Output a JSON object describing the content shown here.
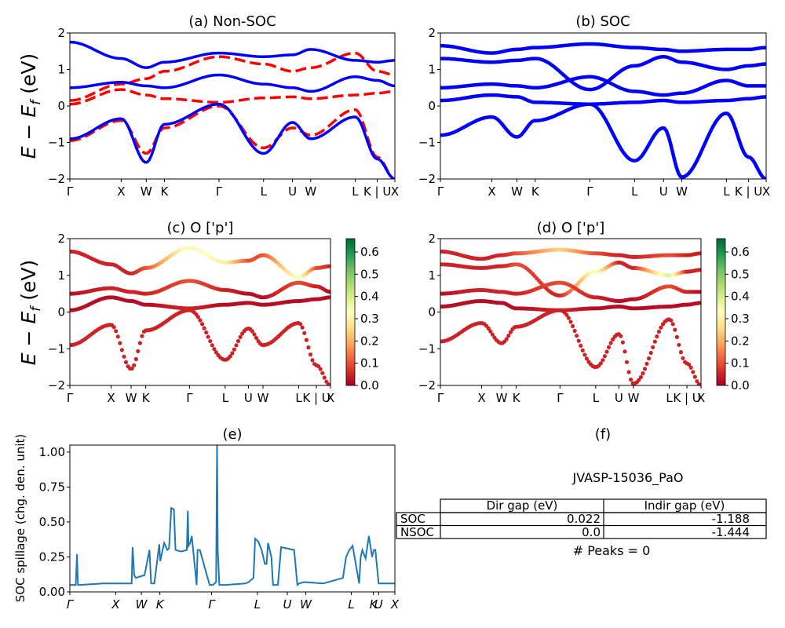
{
  "figure": {
    "ylabel_band": "E − E_f (eV)",
    "ylabel_spillage": "SOC spillage (chg. den. unit)"
  },
  "colors": {
    "nonsoc_red": "#ff0000",
    "soc_blue": "#0000ff",
    "spillage_line": "#1f77b4"
  },
  "colorbar": {
    "colormap": "RdYlGn",
    "ticks": [
      "0.0",
      "0.1",
      "0.2",
      "0.3",
      "0.4",
      "0.5",
      "0.6"
    ],
    "range": [
      0,
      0.66
    ]
  },
  "chart_data": [
    {
      "panel": "a",
      "type": "line",
      "title": "(a) Non-SOC",
      "ylim": [
        -2,
        2
      ],
      "yticks": [
        "−2",
        "−1",
        "0",
        "1",
        "2"
      ],
      "kpath": [
        "Γ",
        "X",
        "W",
        "K",
        "Γ",
        "L",
        "U",
        "W",
        "L",
        "K | U",
        "X"
      ],
      "kpos": [
        0,
        0.158,
        0.235,
        0.291,
        0.459,
        0.596,
        0.685,
        0.741,
        0.878,
        0.946,
        1.0
      ],
      "series": [
        {
          "style": "dashed red",
          "x": [
            0,
            0.158,
            0.235,
            0.291,
            0.459,
            0.596,
            0.685,
            0.741,
            0.878,
            0.946,
            1.0
          ],
          "y": [
            0.15,
            0.6,
            0.75,
            0.95,
            1.35,
            1.15,
            0.95,
            1.05,
            1.45,
            0.95,
            0.85
          ]
        },
        {
          "style": "dashed red",
          "x": [
            0,
            0.158,
            0.235,
            0.291,
            0.459,
            0.596,
            0.685,
            0.741,
            0.878,
            0.946,
            1.0
          ],
          "y": [
            0.05,
            0.45,
            0.3,
            0.2,
            0.1,
            0.22,
            0.25,
            0.2,
            0.3,
            0.35,
            0.4
          ]
        },
        {
          "style": "dashed red",
          "x": [
            0,
            0.158,
            0.235,
            0.291,
            0.459,
            0.596,
            0.685,
            0.741,
            0.878,
            0.946,
            1.0
          ],
          "y": [
            -0.95,
            -0.4,
            -1.3,
            -0.6,
            0.0,
            -1.15,
            -0.6,
            -0.8,
            -0.1,
            -1.4,
            -2.0
          ]
        },
        {
          "style": "solid blue",
          "x": [
            0,
            0.158,
            0.235,
            0.291,
            0.459,
            0.596,
            0.685,
            0.741,
            0.878,
            0.946,
            1.0
          ],
          "y": [
            1.75,
            1.3,
            1.05,
            1.2,
            1.45,
            1.35,
            1.4,
            1.55,
            1.25,
            1.2,
            1.25
          ]
        },
        {
          "style": "solid blue",
          "x": [
            0,
            0.158,
            0.235,
            0.291,
            0.459,
            0.596,
            0.685,
            0.741,
            0.878,
            0.946,
            1.0
          ],
          "y": [
            0.5,
            0.65,
            0.55,
            0.5,
            0.85,
            0.6,
            0.5,
            0.4,
            0.8,
            0.7,
            0.55
          ]
        },
        {
          "style": "solid blue",
          "x": [
            0,
            0.158,
            0.235,
            0.291,
            0.459,
            0.596,
            0.685,
            0.741,
            0.878,
            0.946,
            1.0
          ],
          "y": [
            -0.9,
            -0.35,
            -1.55,
            -0.5,
            0.05,
            -1.3,
            -0.45,
            -0.9,
            -0.3,
            -1.45,
            -2.0
          ]
        }
      ]
    },
    {
      "panel": "b",
      "type": "line",
      "title": "(b) SOC",
      "ylim": [
        -2,
        2
      ],
      "yticks": [
        "−2",
        "−1",
        "0",
        "1",
        "2"
      ],
      "kpath": [
        "Γ",
        "X",
        "W",
        "K",
        "Γ",
        "L",
        "U",
        "W",
        "L",
        "K | U",
        "X"
      ],
      "kpos": [
        0,
        0.158,
        0.235,
        0.291,
        0.459,
        0.596,
        0.685,
        0.741,
        0.878,
        0.946,
        1.0
      ],
      "series": [
        {
          "style": "solid blue",
          "x": [
            0,
            0.158,
            0.235,
            0.291,
            0.459,
            0.596,
            0.685,
            0.741,
            0.878,
            0.946,
            1.0
          ],
          "y": [
            1.65,
            1.45,
            1.55,
            1.6,
            1.7,
            1.6,
            1.55,
            1.5,
            1.55,
            1.55,
            1.6
          ]
        },
        {
          "style": "solid blue",
          "x": [
            0,
            0.158,
            0.235,
            0.291,
            0.459,
            0.596,
            0.685,
            0.741,
            0.878,
            0.946,
            1.0
          ],
          "y": [
            1.3,
            1.2,
            1.25,
            1.3,
            0.45,
            1.1,
            1.35,
            1.2,
            1.0,
            1.1,
            1.15
          ]
        },
        {
          "style": "solid blue",
          "x": [
            0,
            0.158,
            0.235,
            0.291,
            0.459,
            0.596,
            0.685,
            0.741,
            0.878,
            0.946,
            1.0
          ],
          "y": [
            0.5,
            0.6,
            0.55,
            0.5,
            0.8,
            0.4,
            0.3,
            0.35,
            0.7,
            0.55,
            0.55
          ]
        },
        {
          "style": "solid blue",
          "x": [
            0,
            0.158,
            0.235,
            0.291,
            0.459,
            0.596,
            0.685,
            0.741,
            0.878,
            0.946,
            1.0
          ],
          "y": [
            0.15,
            0.3,
            0.25,
            0.1,
            0.05,
            0.1,
            0.15,
            0.1,
            0.15,
            0.2,
            0.25
          ]
        },
        {
          "style": "solid blue",
          "x": [
            0,
            0.158,
            0.235,
            0.291,
            0.459,
            0.596,
            0.685,
            0.741,
            0.878,
            0.946,
            1.0
          ],
          "y": [
            -0.8,
            -0.3,
            -0.85,
            -0.4,
            0.05,
            -1.5,
            -0.6,
            -1.95,
            -0.2,
            -1.4,
            -2.0
          ]
        }
      ]
    },
    {
      "panel": "c",
      "type": "scatter",
      "title": "(c)  O ['p']",
      "ylim": [
        -2,
        2
      ],
      "yticks": [
        "−2",
        "−1",
        "0",
        "1",
        "2"
      ],
      "kpath": [
        "Γ",
        "X",
        "W",
        "K",
        "Γ",
        "L",
        "U",
        "W",
        "L",
        "K | U",
        "X"
      ],
      "kpos": [
        0,
        0.158,
        0.235,
        0.291,
        0.459,
        0.596,
        0.685,
        0.741,
        0.878,
        0.946,
        1.0
      ],
      "series": [
        {
          "x": [
            0,
            0.158,
            0.235,
            0.291,
            0.459,
            0.596,
            0.685,
            0.741,
            0.878,
            0.946,
            1.0
          ],
          "y": [
            1.65,
            1.3,
            1.05,
            1.2,
            1.75,
            1.35,
            1.4,
            1.55,
            0.95,
            1.2,
            1.25
          ],
          "weight": [
            0.05,
            0.05,
            0.05,
            0.1,
            0.35,
            0.3,
            0.1,
            0.1,
            0.35,
            0.1,
            0.05
          ]
        },
        {
          "x": [
            0,
            0.158,
            0.235,
            0.291,
            0.459,
            0.596,
            0.685,
            0.741,
            0.878,
            0.946,
            1.0
          ],
          "y": [
            0.5,
            0.65,
            0.55,
            0.5,
            0.85,
            0.6,
            0.5,
            0.4,
            0.8,
            0.7,
            0.55
          ],
          "weight": [
            0.02,
            0.05,
            0.05,
            0.05,
            0.1,
            0.05,
            0.02,
            0.02,
            0.1,
            0.05,
            0.02
          ]
        },
        {
          "x": [
            0,
            0.158,
            0.235,
            0.291,
            0.459,
            0.596,
            0.685,
            0.741,
            0.878,
            0.946,
            1.0
          ],
          "y": [
            0.05,
            0.4,
            0.3,
            0.2,
            0.1,
            0.2,
            0.25,
            0.2,
            0.3,
            0.35,
            0.4
          ],
          "weight": [
            0.02,
            0.02,
            0.02,
            0.02,
            0.05,
            0.02,
            0.02,
            0.02,
            0.02,
            0.02,
            0.02
          ]
        },
        {
          "x": [
            0,
            0.158,
            0.235,
            0.291,
            0.459,
            0.596,
            0.685,
            0.741,
            0.878,
            0.946,
            1.0
          ],
          "y": [
            -0.9,
            -0.35,
            -1.55,
            -0.5,
            0.05,
            -1.3,
            -0.45,
            -0.9,
            -0.3,
            -1.45,
            -2.0
          ],
          "weight": [
            0.05,
            0.05,
            0.05,
            0.05,
            0.05,
            0.05,
            0.05,
            0.05,
            0.05,
            0.05,
            0.05
          ]
        }
      ]
    },
    {
      "panel": "d",
      "type": "scatter",
      "title": "(d) O ['p']",
      "ylim": [
        -2,
        2
      ],
      "yticks": [
        "−2",
        "−1",
        "0",
        "1",
        "2"
      ],
      "kpath": [
        "Γ",
        "X",
        "W",
        "K",
        "Γ",
        "L",
        "U",
        "W",
        "L",
        "K | U",
        "X"
      ],
      "kpos": [
        0,
        0.158,
        0.235,
        0.291,
        0.459,
        0.596,
        0.685,
        0.741,
        0.878,
        0.946,
        1.0
      ],
      "series": [
        {
          "x": [
            0,
            0.158,
            0.235,
            0.291,
            0.459,
            0.596,
            0.685,
            0.741,
            0.878,
            0.946,
            1.0
          ],
          "y": [
            1.65,
            1.45,
            1.55,
            1.6,
            1.7,
            1.6,
            1.55,
            1.5,
            1.55,
            1.55,
            1.6
          ],
          "weight": [
            0.05,
            0.05,
            0.05,
            0.1,
            0.25,
            0.1,
            0.05,
            0.05,
            0.1,
            0.05,
            0.05
          ]
        },
        {
          "x": [
            0,
            0.158,
            0.235,
            0.291,
            0.459,
            0.596,
            0.685,
            0.741,
            0.878,
            0.946,
            1.0
          ],
          "y": [
            1.3,
            1.2,
            1.25,
            1.3,
            0.45,
            1.1,
            1.35,
            1.2,
            1.0,
            1.1,
            1.15
          ],
          "weight": [
            0.05,
            0.05,
            0.05,
            0.1,
            0.05,
            0.35,
            0.05,
            0.05,
            0.4,
            0.05,
            0.05
          ]
        },
        {
          "x": [
            0,
            0.158,
            0.235,
            0.291,
            0.459,
            0.596,
            0.685,
            0.741,
            0.878,
            0.946,
            1.0
          ],
          "y": [
            0.5,
            0.6,
            0.55,
            0.5,
            0.8,
            0.4,
            0.3,
            0.35,
            0.7,
            0.55,
            0.55
          ],
          "weight": [
            0.02,
            0.05,
            0.05,
            0.05,
            0.1,
            0.05,
            0.02,
            0.02,
            0.1,
            0.05,
            0.02
          ]
        },
        {
          "x": [
            0,
            0.158,
            0.235,
            0.291,
            0.459,
            0.596,
            0.685,
            0.741,
            0.878,
            0.946,
            1.0
          ],
          "y": [
            0.15,
            0.3,
            0.25,
            0.1,
            0.05,
            0.1,
            0.15,
            0.1,
            0.15,
            0.2,
            0.25
          ],
          "weight": [
            0.02,
            0.02,
            0.02,
            0.02,
            0.05,
            0.02,
            0.02,
            0.02,
            0.02,
            0.02,
            0.02
          ]
        },
        {
          "x": [
            0,
            0.158,
            0.235,
            0.291,
            0.459,
            0.596,
            0.685,
            0.741,
            0.878,
            0.946,
            1.0
          ],
          "y": [
            -0.8,
            -0.3,
            -0.85,
            -0.4,
            0.05,
            -1.5,
            -0.6,
            -1.95,
            -0.2,
            -1.4,
            -2.0
          ],
          "weight": [
            0.05,
            0.05,
            0.05,
            0.05,
            0.05,
            0.05,
            0.05,
            0.05,
            0.05,
            0.05,
            0.05
          ]
        }
      ]
    },
    {
      "panel": "e",
      "type": "line",
      "title": "(e)",
      "ylabel": "SOC spillage (chg. den. unit)",
      "ylim": [
        0,
        1.05
      ],
      "yticks": [
        "0.00",
        "0.25",
        "0.50",
        "0.75",
        "1.00"
      ],
      "kpath": [
        "Γ",
        "X",
        "W",
        "K",
        "Γ",
        "L",
        "U",
        "W",
        "L",
        "K",
        "U",
        "X"
      ],
      "kpos": [
        0,
        0.141,
        0.22,
        0.277,
        0.436,
        0.577,
        0.669,
        0.726,
        0.866,
        0.934,
        0.95,
        1.0
      ],
      "series": [
        {
          "name": "",
          "x": [
            0,
            0.018,
            0.022,
            0.025,
            0.03,
            0.1,
            0.19,
            0.193,
            0.198,
            0.203,
            0.23,
            0.245,
            0.25,
            0.26,
            0.275,
            0.278,
            0.29,
            0.3,
            0.305,
            0.312,
            0.32,
            0.325,
            0.34,
            0.345,
            0.36,
            0.363,
            0.365,
            0.37,
            0.375,
            0.39,
            0.393,
            0.4,
            0.43,
            0.44,
            0.45,
            0.453,
            0.455,
            0.46,
            0.48,
            0.54,
            0.55,
            0.565,
            0.57,
            0.58,
            0.59,
            0.6,
            0.605,
            0.61,
            0.62,
            0.625,
            0.64,
            0.65,
            0.69,
            0.7,
            0.705,
            0.72,
            0.78,
            0.84,
            0.85,
            0.86,
            0.87,
            0.89,
            0.895,
            0.9,
            0.91,
            0.92,
            0.93,
            0.935,
            0.94,
            0.95,
            1.0
          ],
          "y": [
            0.05,
            0.05,
            0.27,
            0.05,
            0.05,
            0.06,
            0.06,
            0.32,
            0.12,
            0.1,
            0.12,
            0.3,
            0.06,
            0.06,
            0.34,
            0.22,
            0.35,
            0.3,
            0.31,
            0.6,
            0.59,
            0.3,
            0.29,
            0.29,
            0.3,
            0.58,
            0.33,
            0.35,
            0.4,
            0.05,
            0.3,
            0.3,
            0.05,
            0.05,
            0.07,
            1.05,
            0.3,
            0.05,
            0.05,
            0.06,
            0.07,
            0.1,
            0.38,
            0.36,
            0.3,
            0.2,
            0.2,
            0.35,
            0.25,
            0.05,
            0.05,
            0.32,
            0.3,
            0.05,
            0.06,
            0.07,
            0.06,
            0.1,
            0.25,
            0.3,
            0.33,
            0.06,
            0.25,
            0.3,
            0.24,
            0.4,
            0.25,
            0.3,
            0.3,
            0.06,
            0.06
          ]
        }
      ]
    }
  ],
  "table": {
    "title": "(f)",
    "caption": "JVASP-15036_PaO",
    "headers": [
      "",
      "Dir gap (eV)",
      "Indir gap (eV)"
    ],
    "rows": [
      [
        "SOC",
        "0.022",
        "-1.188"
      ],
      [
        "NSOC",
        "0.0",
        "-1.444"
      ]
    ],
    "footer": "# Peaks = 0"
  }
}
